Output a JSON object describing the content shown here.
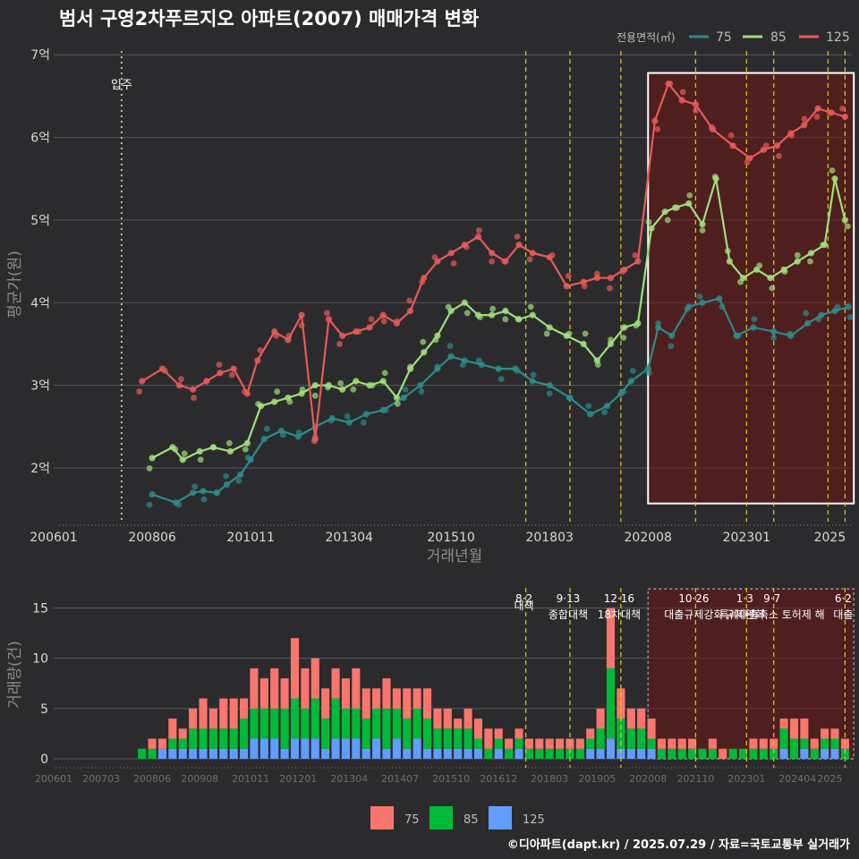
{
  "title": "범서 구영2차푸르지오 아파트(2007) 매매가격 변화",
  "credit": "©디아파트(dapt.kr) / 2025.07.29 / 자료=국토교통부 실거래가",
  "legend": {
    "title": "전용면적(㎡)",
    "items": [
      {
        "label": "75",
        "line_color": "#2e8b8b",
        "bar_color": "#f8766d"
      },
      {
        "label": "85",
        "line_color": "#9fe07a",
        "bar_color": "#00ba38"
      },
      {
        "label": "125",
        "line_color": "#e85a57",
        "bar_color": "#619cff"
      }
    ]
  },
  "chart_data": [
    {
      "type": "line",
      "title": "범서 구영2차푸르지오 아파트(2007) 매매가격 변화",
      "xlabel": "거래년월",
      "ylabel": "평균가(원)",
      "x_ticks": [
        "200601",
        "200806",
        "201011",
        "201304",
        "201510",
        "201803",
        "202008",
        "202301",
        "2025"
      ],
      "y_ticks": [
        "2억",
        "3억",
        "4억",
        "5억",
        "6억",
        "7억"
      ],
      "ylim": [
        1.35,
        7.1
      ],
      "xlim": [
        "2006-01",
        "2025-08"
      ],
      "unit": "억",
      "annotation": {
        "label": "입주",
        "x": "2007-09"
      },
      "policy_lines_x": [
        "2017-08",
        "2018-09",
        "2019-12",
        "2021-10",
        "2023-01",
        "2023-09",
        "2025-01",
        "2025-06"
      ],
      "highlight_region": {
        "x_start": "2020-08",
        "x_end": "2025-07"
      },
      "series": [
        {
          "name": "75",
          "color": "#2e8b8b",
          "x": [
            "2008-06",
            "2009-01",
            "2009-06",
            "2009-09",
            "2010-01",
            "2010-04",
            "2010-08",
            "2010-11",
            "2011-03",
            "2011-08",
            "2012-01",
            "2012-06",
            "2012-11",
            "2013-04",
            "2013-09",
            "2014-02",
            "2014-08",
            "2015-01",
            "2015-06",
            "2015-10",
            "2016-02",
            "2016-07",
            "2016-12",
            "2017-05",
            "2017-10",
            "2018-03",
            "2018-09",
            "2019-03",
            "2019-08",
            "2019-12",
            "2020-03",
            "2020-08",
            "2020-11",
            "2021-03",
            "2021-08",
            "2021-12",
            "2022-05",
            "2022-10",
            "2023-03",
            "2023-09",
            "2024-02",
            "2024-07",
            "2024-11",
            "2025-03",
            "2025-07"
          ],
          "values": [
            1.68,
            1.58,
            1.7,
            1.72,
            1.7,
            1.8,
            1.92,
            2.1,
            2.35,
            2.45,
            2.38,
            2.5,
            2.6,
            2.55,
            2.65,
            2.7,
            2.85,
            3.0,
            3.2,
            3.35,
            3.3,
            3.25,
            3.2,
            3.2,
            3.05,
            3.0,
            2.85,
            2.65,
            2.75,
            2.9,
            3.05,
            3.2,
            3.7,
            3.6,
            3.95,
            4.0,
            4.05,
            3.6,
            3.7,
            3.65,
            3.6,
            3.75,
            3.85,
            3.9,
            3.95
          ]
        },
        {
          "name": "85",
          "color": "#9fe07a",
          "x": [
            "2008-06",
            "2008-12",
            "2009-03",
            "2009-08",
            "2009-12",
            "2010-05",
            "2010-10",
            "2011-02",
            "2011-06",
            "2011-10",
            "2012-02",
            "2012-06",
            "2012-10",
            "2013-02",
            "2013-06",
            "2013-10",
            "2014-02",
            "2014-06",
            "2014-10",
            "2015-02",
            "2015-06",
            "2015-10",
            "2016-02",
            "2016-06",
            "2016-10",
            "2017-02",
            "2017-06",
            "2017-10",
            "2018-03",
            "2018-08",
            "2019-01",
            "2019-05",
            "2019-09",
            "2020-01",
            "2020-05",
            "2020-09",
            "2021-01",
            "2021-04",
            "2021-08",
            "2021-12",
            "2022-04",
            "2022-08",
            "2022-12",
            "2023-04",
            "2023-08",
            "2023-12",
            "2024-04",
            "2024-08",
            "2024-12",
            "2025-03",
            "2025-06"
          ],
          "values": [
            2.12,
            2.25,
            2.1,
            2.2,
            2.25,
            2.2,
            2.3,
            2.75,
            2.8,
            2.85,
            2.9,
            3.0,
            3.0,
            2.95,
            3.05,
            3.0,
            3.05,
            2.85,
            3.2,
            3.4,
            3.6,
            3.9,
            4.0,
            3.85,
            3.85,
            3.9,
            3.8,
            3.85,
            3.7,
            3.6,
            3.5,
            3.3,
            3.5,
            3.7,
            3.75,
            4.9,
            5.1,
            5.15,
            5.2,
            4.95,
            5.5,
            4.5,
            4.3,
            4.4,
            4.3,
            4.4,
            4.5,
            4.6,
            4.7,
            5.5,
            5.0
          ]
        },
        {
          "name": "125",
          "color": "#e85a57",
          "x": [
            "2008-03",
            "2008-09",
            "2009-02",
            "2009-06",
            "2009-10",
            "2010-02",
            "2010-06",
            "2010-10",
            "2011-01",
            "2011-06",
            "2011-10",
            "2012-02",
            "2012-06",
            "2012-10",
            "2013-02",
            "2013-06",
            "2013-10",
            "2014-02",
            "2014-06",
            "2014-10",
            "2015-02",
            "2015-06",
            "2015-10",
            "2016-02",
            "2016-06",
            "2016-10",
            "2017-02",
            "2017-06",
            "2017-10",
            "2018-03",
            "2018-08",
            "2019-01",
            "2019-05",
            "2019-09",
            "2020-01",
            "2020-05",
            "2020-10",
            "2021-02",
            "2021-06",
            "2021-10",
            "2022-03",
            "2022-09",
            "2023-02",
            "2023-06",
            "2023-10",
            "2024-02",
            "2024-06",
            "2024-10",
            "2025-02",
            "2025-06"
          ],
          "values": [
            3.05,
            3.2,
            3.0,
            2.95,
            3.05,
            3.15,
            3.2,
            2.9,
            3.3,
            3.65,
            3.55,
            3.85,
            2.35,
            3.8,
            3.6,
            3.65,
            3.7,
            3.85,
            3.75,
            3.9,
            4.3,
            4.5,
            4.6,
            4.7,
            4.8,
            4.6,
            4.5,
            4.7,
            4.6,
            4.55,
            4.2,
            4.25,
            4.3,
            4.3,
            4.4,
            4.5,
            6.2,
            6.65,
            6.45,
            6.4,
            6.1,
            5.9,
            5.75,
            5.85,
            5.9,
            6.05,
            6.15,
            6.35,
            6.3,
            6.25
          ]
        }
      ]
    },
    {
      "type": "bar",
      "stacked": true,
      "ylabel": "거래량(건)",
      "x_ticks": [
        "200601",
        "200703",
        "200806",
        "200908",
        "201011",
        "201201",
        "201304",
        "201407",
        "201510",
        "201612",
        "201803",
        "201905",
        "202008",
        "202110",
        "202301",
        "202404",
        "2025"
      ],
      "y_ticks": [
        "0",
        "5",
        "10",
        "15"
      ],
      "ylim": [
        0,
        17
      ],
      "policies": [
        {
          "x": "2017-08",
          "date": "8·2",
          "label": "대책"
        },
        {
          "x": "2018-09",
          "date": "9·13",
          "label": "종합대책"
        },
        {
          "x": "2019-12",
          "date": "12·16",
          "label": "18차대책"
        },
        {
          "x": "2021-10",
          "date": "10·26",
          "label": "대출규제강화"
        },
        {
          "x": "2023-01",
          "date": "1·3",
          "label": "규제완화"
        },
        {
          "x": "2023-09",
          "date": "9·7",
          "label": "특례대출축소 토허제 해"
        },
        {
          "x": "2025-06",
          "date": "6·2",
          "label": "대출"
        }
      ],
      "highlight_region": {
        "x_start": "2020-08",
        "x_end": "2025-07"
      },
      "series_order": [
        "125",
        "85",
        "75"
      ],
      "series": [
        {
          "name": "125",
          "color": "#619cff"
        },
        {
          "name": "85",
          "color": "#00ba38"
        },
        {
          "name": "75",
          "color": "#f8766d"
        }
      ],
      "bars": [
        {
          "x": "2008-03",
          "v": [
            0,
            1,
            0
          ]
        },
        {
          "x": "2008-06",
          "v": [
            0,
            1,
            1
          ]
        },
        {
          "x": "2008-09",
          "v": [
            1,
            0,
            1
          ]
        },
        {
          "x": "2008-12",
          "v": [
            1,
            1,
            2
          ]
        },
        {
          "x": "2009-03",
          "v": [
            1,
            1,
            1
          ]
        },
        {
          "x": "2009-06",
          "v": [
            1,
            2,
            2
          ]
        },
        {
          "x": "2009-09",
          "v": [
            1,
            2,
            3
          ]
        },
        {
          "x": "2009-12",
          "v": [
            1,
            2,
            2
          ]
        },
        {
          "x": "2010-03",
          "v": [
            1,
            2,
            3
          ]
        },
        {
          "x": "2010-06",
          "v": [
            1,
            2,
            3
          ]
        },
        {
          "x": "2010-09",
          "v": [
            1,
            3,
            2
          ]
        },
        {
          "x": "2010-12",
          "v": [
            2,
            3,
            4
          ]
        },
        {
          "x": "2011-03",
          "v": [
            2,
            3,
            3
          ]
        },
        {
          "x": "2011-06",
          "v": [
            2,
            3,
            4
          ]
        },
        {
          "x": "2011-09",
          "v": [
            1,
            4,
            3
          ]
        },
        {
          "x": "2011-12",
          "v": [
            2,
            4,
            6
          ]
        },
        {
          "x": "2012-03",
          "v": [
            2,
            3,
            4
          ]
        },
        {
          "x": "2012-06",
          "v": [
            2,
            4,
            4
          ]
        },
        {
          "x": "2012-09",
          "v": [
            1,
            3,
            3
          ]
        },
        {
          "x": "2012-12",
          "v": [
            2,
            4,
            3
          ]
        },
        {
          "x": "2013-03",
          "v": [
            2,
            3,
            3
          ]
        },
        {
          "x": "2013-06",
          "v": [
            2,
            3,
            4
          ]
        },
        {
          "x": "2013-09",
          "v": [
            1,
            3,
            3
          ]
        },
        {
          "x": "2013-12",
          "v": [
            2,
            3,
            2
          ]
        },
        {
          "x": "2014-03",
          "v": [
            1,
            4,
            3
          ]
        },
        {
          "x": "2014-06",
          "v": [
            2,
            3,
            2
          ]
        },
        {
          "x": "2014-09",
          "v": [
            1,
            3,
            3
          ]
        },
        {
          "x": "2014-12",
          "v": [
            2,
            3,
            2
          ]
        },
        {
          "x": "2015-03",
          "v": [
            1,
            3,
            3
          ]
        },
        {
          "x": "2015-06",
          "v": [
            1,
            2,
            2
          ]
        },
        {
          "x": "2015-09",
          "v": [
            1,
            2,
            2
          ]
        },
        {
          "x": "2015-12",
          "v": [
            1,
            2,
            1
          ]
        },
        {
          "x": "2016-03",
          "v": [
            1,
            2,
            2
          ]
        },
        {
          "x": "2016-06",
          "v": [
            1,
            1,
            2
          ]
        },
        {
          "x": "2016-09",
          "v": [
            0,
            1,
            2
          ]
        },
        {
          "x": "2016-12",
          "v": [
            1,
            1,
            1
          ]
        },
        {
          "x": "2017-03",
          "v": [
            0,
            1,
            1
          ]
        },
        {
          "x": "2017-06",
          "v": [
            1,
            1,
            1
          ]
        },
        {
          "x": "2017-09",
          "v": [
            0,
            1,
            1
          ]
        },
        {
          "x": "2017-12",
          "v": [
            0,
            1,
            1
          ]
        },
        {
          "x": "2018-03",
          "v": [
            0,
            1,
            1
          ]
        },
        {
          "x": "2018-06",
          "v": [
            0,
            1,
            1
          ]
        },
        {
          "x": "2018-09",
          "v": [
            0,
            1,
            1
          ]
        },
        {
          "x": "2018-12",
          "v": [
            0,
            1,
            1
          ]
        },
        {
          "x": "2019-03",
          "v": [
            1,
            1,
            1
          ]
        },
        {
          "x": "2019-06",
          "v": [
            1,
            2,
            2
          ]
        },
        {
          "x": "2019-09",
          "v": [
            2,
            7,
            6
          ]
        },
        {
          "x": "2019-12",
          "v": [
            1,
            3,
            3
          ]
        },
        {
          "x": "2020-03",
          "v": [
            1,
            2,
            2
          ]
        },
        {
          "x": "2020-06",
          "v": [
            1,
            2,
            2
          ]
        },
        {
          "x": "2020-09",
          "v": [
            1,
            1,
            2
          ]
        },
        {
          "x": "2020-12",
          "v": [
            0,
            1,
            1
          ]
        },
        {
          "x": "2021-03",
          "v": [
            0,
            1,
            1
          ]
        },
        {
          "x": "2021-06",
          "v": [
            0,
            1,
            1
          ]
        },
        {
          "x": "2021-09",
          "v": [
            0,
            1,
            1
          ]
        },
        {
          "x": "2021-12",
          "v": [
            0,
            1,
            0
          ]
        },
        {
          "x": "2022-03",
          "v": [
            0,
            1,
            1
          ]
        },
        {
          "x": "2022-06",
          "v": [
            0,
            0,
            1
          ]
        },
        {
          "x": "2022-09",
          "v": [
            0,
            1,
            0
          ]
        },
        {
          "x": "2022-12",
          "v": [
            0,
            1,
            0
          ]
        },
        {
          "x": "2023-03",
          "v": [
            0,
            1,
            1
          ]
        },
        {
          "x": "2023-06",
          "v": [
            0,
            1,
            1
          ]
        },
        {
          "x": "2023-09",
          "v": [
            0,
            1,
            1
          ]
        },
        {
          "x": "2023-12",
          "v": [
            1,
            2,
            1
          ]
        },
        {
          "x": "2024-03",
          "v": [
            0,
            2,
            2
          ]
        },
        {
          "x": "2024-06",
          "v": [
            1,
            1,
            2
          ]
        },
        {
          "x": "2024-09",
          "v": [
            0,
            1,
            1
          ]
        },
        {
          "x": "2024-12",
          "v": [
            1,
            1,
            1
          ]
        },
        {
          "x": "2025-03",
          "v": [
            1,
            1,
            1
          ]
        },
        {
          "x": "2025-06",
          "v": [
            0,
            1,
            1
          ]
        }
      ]
    }
  ]
}
